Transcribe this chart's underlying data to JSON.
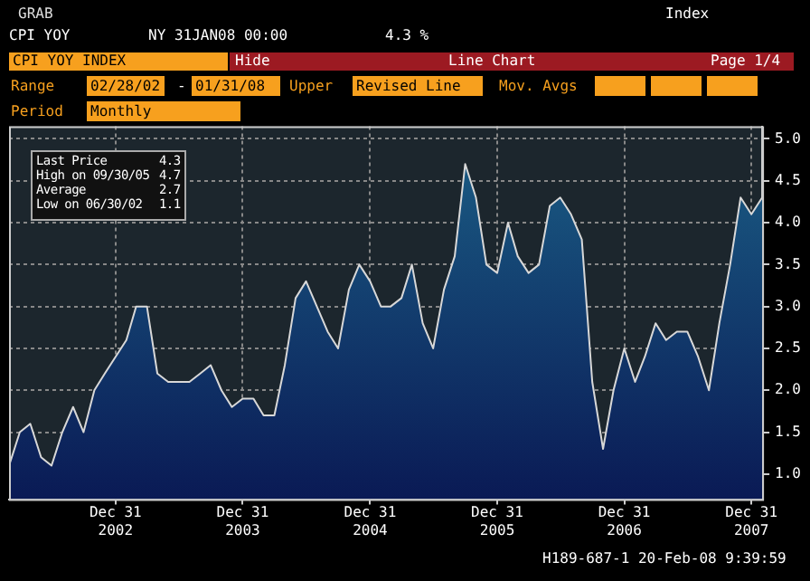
{
  "chart_data": {
    "type": "area",
    "title": "CPI YOY INDEX",
    "x": [
      "2002-02-28",
      "2002-03-31",
      "2002-04-30",
      "2002-05-31",
      "2002-06-30",
      "2002-07-31",
      "2002-08-31",
      "2002-09-30",
      "2002-10-31",
      "2002-11-30",
      "2002-12-31",
      "2003-01-31",
      "2003-02-28",
      "2003-03-31",
      "2003-04-30",
      "2003-05-31",
      "2003-06-30",
      "2003-07-31",
      "2003-08-31",
      "2003-09-30",
      "2003-10-31",
      "2003-11-30",
      "2003-12-31",
      "2004-01-31",
      "2004-02-29",
      "2004-03-31",
      "2004-04-30",
      "2004-05-31",
      "2004-06-30",
      "2004-07-31",
      "2004-08-31",
      "2004-09-30",
      "2004-10-31",
      "2004-11-30",
      "2004-12-31",
      "2005-01-31",
      "2005-02-28",
      "2005-03-31",
      "2005-04-30",
      "2005-05-31",
      "2005-06-30",
      "2005-07-31",
      "2005-08-31",
      "2005-09-30",
      "2005-10-31",
      "2005-11-30",
      "2005-12-31",
      "2006-01-31",
      "2006-02-28",
      "2006-03-31",
      "2006-04-30",
      "2006-05-31",
      "2006-06-30",
      "2006-07-31",
      "2006-08-31",
      "2006-09-30",
      "2006-10-31",
      "2006-11-30",
      "2006-12-31",
      "2007-01-31",
      "2007-02-28",
      "2007-03-31",
      "2007-04-30",
      "2007-05-31",
      "2007-06-30",
      "2007-07-31",
      "2007-08-31",
      "2007-09-30",
      "2007-10-31",
      "2007-11-30",
      "2007-12-31",
      "2008-01-31"
    ],
    "series": [
      {
        "color": "#1b5f86",
        "values": [
          1.1,
          1.5,
          1.6,
          1.2,
          1.1,
          1.5,
          1.8,
          1.5,
          2.0,
          2.2,
          2.4,
          2.6,
          3.0,
          3.0,
          2.2,
          2.1,
          2.1,
          2.1,
          2.2,
          2.3,
          2.0,
          1.8,
          1.9,
          1.9,
          1.7,
          1.7,
          2.3,
          3.1,
          3.3,
          3.0,
          2.7,
          2.5,
          3.2,
          3.5,
          3.3,
          3.0,
          3.0,
          3.1,
          3.5,
          2.8,
          2.5,
          3.2,
          3.6,
          4.7,
          4.3,
          3.5,
          3.4,
          4.0,
          3.6,
          3.4,
          3.5,
          4.2,
          4.3,
          4.1,
          3.8,
          2.1,
          1.3,
          2.0,
          2.5,
          2.1,
          2.4,
          2.8,
          2.6,
          2.7,
          2.7,
          2.4,
          2.0,
          2.8,
          3.5,
          4.3,
          4.1,
          4.3
        ]
      }
    ],
    "xlim": [
      "2002-02-28",
      "2008-01-31"
    ],
    "xticks": [
      {
        "value": "2002-12-31",
        "label": "Dec 31\n2002"
      },
      {
        "value": "2003-12-31",
        "label": "Dec 31\n2003"
      },
      {
        "value": "2004-12-31",
        "label": "Dec 31\n2004"
      },
      {
        "value": "2005-12-31",
        "label": "Dec 31\n2005"
      },
      {
        "value": "2006-12-31",
        "label": "Dec 31\n2006"
      },
      {
        "value": "2007-12-31",
        "label": "Dec 31\n2007"
      }
    ],
    "ylim": [
      0.7,
      5.15
    ],
    "yticks": [
      {
        "value": 1,
        "label": "1.0"
      },
      {
        "value": 1.5,
        "label": "1.5"
      },
      {
        "value": 2,
        "label": "2.0"
      },
      {
        "value": 2.5,
        "label": "2.5"
      },
      {
        "value": 3,
        "label": "3.0"
      },
      {
        "value": 3.5,
        "label": "3.5"
      },
      {
        "value": 4,
        "label": "4.0"
      },
      {
        "value": 4.5,
        "label": "4.5"
      },
      {
        "value": 5,
        "label": "5.0"
      }
    ],
    "grid": true,
    "legend": false,
    "annotations": [
      "GRAB",
      "Index",
      "CPI YOY",
      "NY 31JAN08 00:00",
      "4.3 %",
      "Hide",
      "Line Chart",
      "Page 1/4",
      "Range",
      "02/28/02",
      "-",
      "01/31/08",
      "Upper",
      "Revised Line",
      "Mov. Avgs",
      "Period",
      "Monthly",
      "Last Price",
      "4.3",
      "High on 09/30/05",
      "4.7",
      "Average",
      "2.7",
      "Low on 06/30/02",
      "1.1",
      "H189-687-1 20-Feb-08 9:39:59"
    ]
  }
}
